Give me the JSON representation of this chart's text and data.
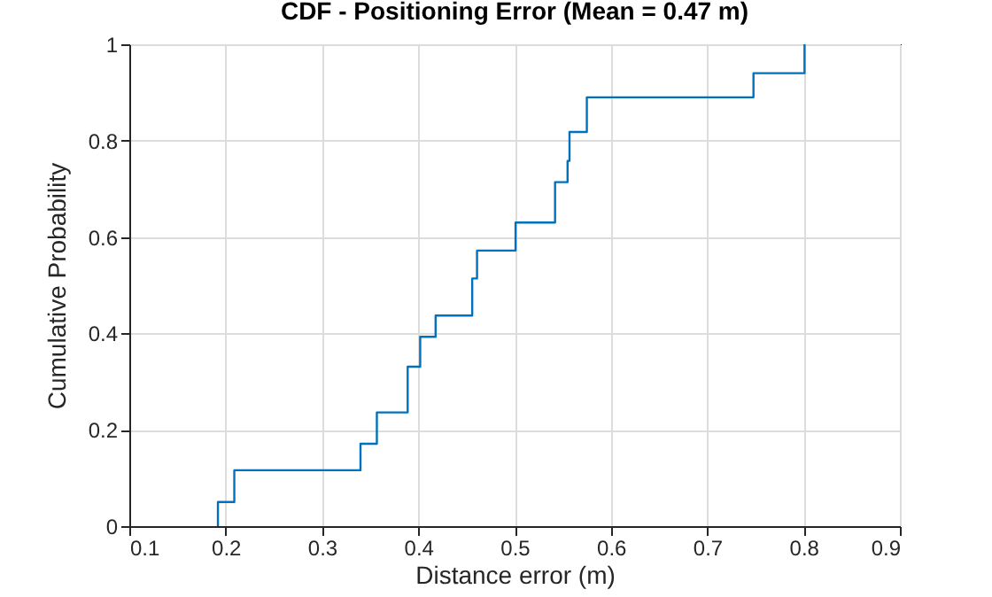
{
  "chart_data": {
    "type": "step",
    "title": "CDF - Positioning Error  (Mean = 0.47 m)",
    "xlabel": "Distance error (m)",
    "ylabel": "Cumulative Probability",
    "x": [
      0.192,
      0.192,
      0.209,
      0.34,
      0.357,
      0.389,
      0.402,
      0.418,
      0.456,
      0.461,
      0.501,
      0.542,
      0.555,
      0.557,
      0.575,
      0.748,
      0.801
    ],
    "series": [
      {
        "color": "#0072bd",
        "values": [
          0,
          0.05,
          0.116,
          0.171,
          0.236,
          0.331,
          0.393,
          0.437,
          0.514,
          0.572,
          0.63,
          0.714,
          0.758,
          0.818,
          0.89,
          0.94,
          1.0
        ]
      }
    ],
    "xlim": [
      0.1,
      0.9
    ],
    "xticks": [
      0.1,
      0.2,
      0.3,
      0.4,
      0.5,
      0.6,
      0.7,
      0.8,
      0.9
    ],
    "ylim": [
      0,
      1
    ],
    "yticks": [
      0,
      0.2,
      0.4,
      0.6,
      0.8,
      1
    ],
    "grid": true
  }
}
